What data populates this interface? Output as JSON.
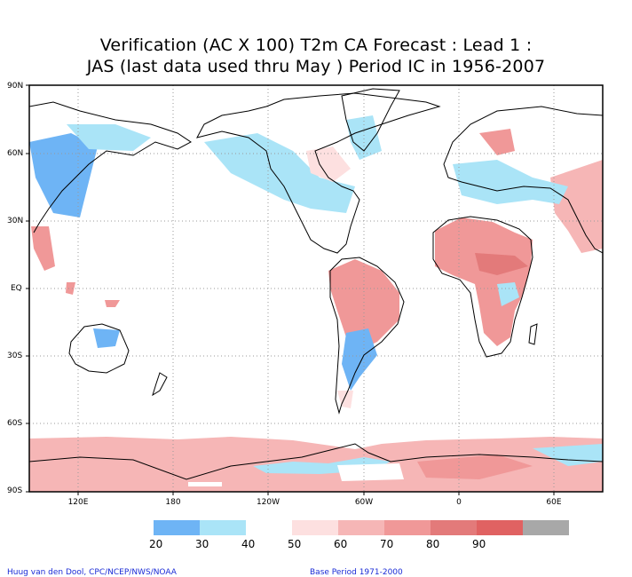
{
  "title": {
    "line1": "Verification (AC X 100) T2m CA Forecast : Lead 1 :",
    "line2": "JAS (last data used thru May ) Period IC in 1956-2007"
  },
  "lat_labels": [
    "90N",
    "60N",
    "30N",
    "EQ",
    "30S",
    "60S",
    "90S"
  ],
  "lon_labels": [
    "120E",
    "180",
    "120W",
    "60W",
    "0",
    "60E"
  ],
  "colorbar": {
    "labels": [
      "20",
      "30",
      "40",
      "50",
      "60",
      "70",
      "80",
      "90"
    ],
    "colors": [
      "#6eb4f5",
      "#aae4f7",
      "#ffffff",
      "#fde0e0",
      "#f6b6b6",
      "#f09898",
      "#e37a7a",
      "#e06262",
      "#a8a8a8"
    ]
  },
  "credit_left": "Huug van den Dool, CPC/NCEP/NWS/NOAA",
  "credit_right": "Base Period 1971-2000"
}
